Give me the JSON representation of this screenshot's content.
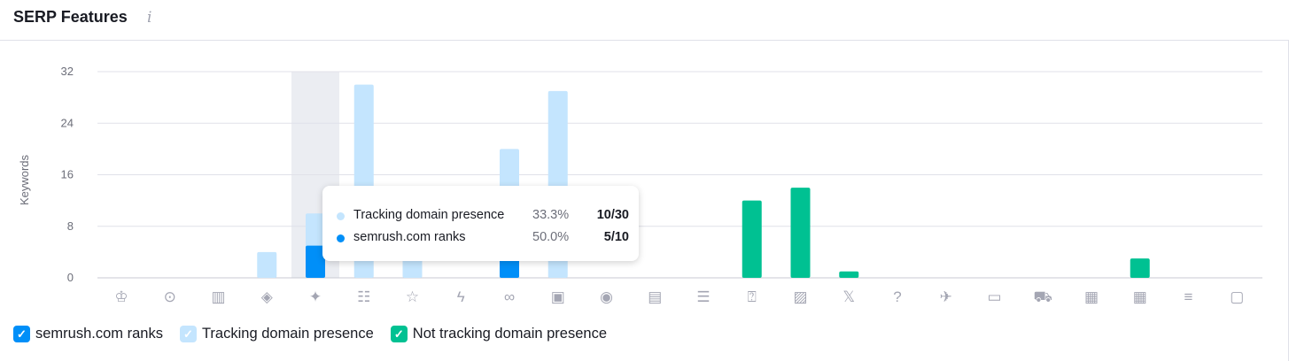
{
  "header": {
    "title": "SERP Features",
    "info_icon": "info-icon"
  },
  "colors": {
    "ranks": "#008ff8",
    "tracking": "#c4e5fe",
    "not_tracking": "#00c192",
    "highlight": "#ebedf2",
    "grid": "#e0e1e9"
  },
  "chart_data": {
    "type": "bar",
    "ylabel": "Keywords",
    "ylim": [
      0,
      32
    ],
    "yticks": [
      0,
      8,
      16,
      24,
      32
    ],
    "grid": true,
    "legend_placement": "bottom-left",
    "categories": [
      "top-stories",
      "local-pack",
      "hotels",
      "knowledge-panel",
      "ai-overview",
      "featured-snippet",
      "reviews",
      "amp",
      "sitelinks",
      "video",
      "video-carousel",
      "news",
      "table",
      "people-also-ask",
      "image-pack",
      "twitter",
      "faq",
      "flights",
      "jobs",
      "shopping",
      "ads-top",
      "ads-bottom",
      "featured-video",
      "tv"
    ],
    "series": [
      {
        "name": "semrush.com ranks",
        "values": [
          0,
          0,
          0,
          0,
          5,
          0,
          0,
          0,
          6,
          0,
          0,
          0,
          0,
          0,
          0,
          0,
          0,
          0,
          0,
          0,
          0,
          0,
          0,
          0
        ]
      },
      {
        "name": "Tracking domain presence",
        "values": [
          0,
          0,
          0,
          4,
          10,
          30,
          5,
          0,
          20,
          29,
          0,
          0,
          0,
          0,
          0,
          0,
          0,
          0,
          0,
          0,
          0,
          0,
          0,
          0
        ]
      },
      {
        "name": "Not tracking domain presence",
        "values": [
          0,
          0,
          0,
          0,
          0,
          0,
          0,
          0,
          0,
          0,
          0,
          0,
          0,
          12,
          14,
          1,
          0,
          0,
          0,
          0,
          0,
          3,
          0,
          0
        ]
      }
    ],
    "highlighted_category": "ai-overview"
  },
  "tooltip": {
    "rows": [
      {
        "label": "Tracking domain presence",
        "percent": "33.3%",
        "value": "10/30"
      },
      {
        "label": "semrush.com ranks",
        "percent": "50.0%",
        "value": "5/10"
      }
    ]
  },
  "legend": [
    {
      "label": "semrush.com ranks",
      "checked": true
    },
    {
      "label": "Tracking domain presence",
      "checked": true
    },
    {
      "label": "Not tracking domain presence",
      "checked": true
    }
  ]
}
